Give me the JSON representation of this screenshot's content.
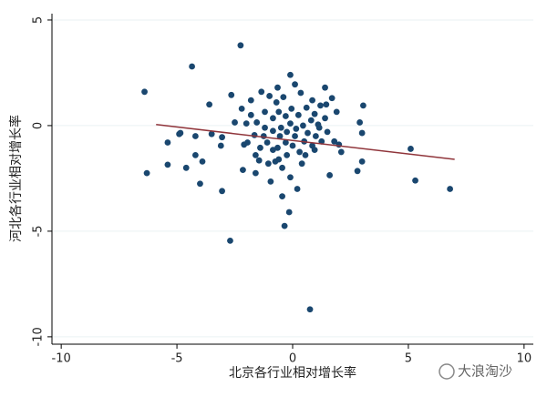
{
  "chart_data": {
    "type": "scatter",
    "x_label": "北京各行业相对增长率",
    "y_label": "河北各行业相对增长率",
    "watermark": "大浪淘沙",
    "xlim": [
      -10.4,
      10.4
    ],
    "ylim": [
      -10.35,
      5.3
    ],
    "xticks": [
      -10,
      -5,
      0,
      5,
      10
    ],
    "yticks": [
      -10,
      -5,
      0,
      5
    ],
    "grid": true,
    "color": "#1a476f",
    "x": [
      -6.4,
      -6.3,
      -5.4,
      -5.4,
      -4.85,
      -4.9,
      -4.6,
      -4.35,
      -4.2,
      -4.2,
      -4.0,
      -3.9,
      -3.6,
      -3.5,
      -3.1,
      -3.05,
      -3.05,
      -2.65,
      -2.7,
      -2.5,
      -2.25,
      -2.15,
      -2.2,
      -2.1,
      -1.95,
      -1.8,
      -1.8,
      -1.65,
      -1.6,
      -1.55,
      -1.45,
      -1.35,
      -1.25,
      -1.2,
      -1.1,
      -1.05,
      -1.0,
      -0.95,
      -0.85,
      -0.85,
      -0.75,
      -0.7,
      -0.65,
      -0.6,
      -0.55,
      -0.5,
      -0.45,
      -0.45,
      -0.4,
      -0.35,
      -0.3,
      -0.3,
      -0.25,
      -0.15,
      -0.1,
      -0.1,
      -0.05,
      0.0,
      0.1,
      0.1,
      0.15,
      0.2,
      0.25,
      0.3,
      0.35,
      0.4,
      0.45,
      0.5,
      0.6,
      0.65,
      0.75,
      0.8,
      0.85,
      0.85,
      0.95,
      1.0,
      1.1,
      1.2,
      1.25,
      1.4,
      1.4,
      1.5,
      1.6,
      1.7,
      1.8,
      1.9,
      2.0,
      2.1,
      2.8,
      2.9,
      3.0,
      3.05,
      3.0,
      5.1,
      5.3,
      6.8,
      -1.2,
      -0.85,
      -1.4,
      -0.25,
      0.55,
      0.95,
      -1.6,
      -0.6,
      -0.1,
      -2.0,
      1.15,
      1.45,
      -0.65
    ],
    "values": [
      1.6,
      -2.25,
      -0.8,
      -1.85,
      -0.35,
      -0.4,
      -2.0,
      2.8,
      -0.5,
      -1.4,
      -2.75,
      -1.7,
      1.0,
      -0.4,
      -0.95,
      -3.1,
      -0.55,
      1.45,
      -5.45,
      0.15,
      3.8,
      -2.1,
      0.8,
      -0.9,
      -0.8,
      1.2,
      0.5,
      -0.45,
      -1.4,
      0.15,
      -1.65,
      1.6,
      -0.5,
      0.65,
      -0.8,
      -1.8,
      1.4,
      -2.65,
      -0.25,
      0.35,
      -1.7,
      1.1,
      -1.05,
      0.65,
      -0.5,
      -0.1,
      -2.0,
      -3.35,
      1.35,
      -4.75,
      0.45,
      -0.8,
      -0.3,
      -4.1,
      0.1,
      2.4,
      0.8,
      -0.95,
      -0.5,
      1.95,
      -0.15,
      -3.0,
      0.5,
      -1.25,
      1.55,
      -1.8,
      0.0,
      -0.75,
      0.85,
      -0.35,
      -8.7,
      0.25,
      1.2,
      -0.95,
      0.55,
      -0.5,
      0.05,
      0.95,
      -0.75,
      1.8,
      0.35,
      -0.3,
      -2.35,
      1.3,
      -0.75,
      0.65,
      -0.9,
      -1.25,
      -2.15,
      0.15,
      -0.35,
      0.95,
      -1.7,
      -1.1,
      -2.6,
      -3.0,
      -0.1,
      -1.15,
      -1.05,
      -1.4,
      -1.4,
      -1.15,
      -2.25,
      -1.6,
      -2.45,
      0.1,
      -0.1,
      1.0,
      1.8
    ],
    "fit": {
      "color": "#90353b",
      "x": [
        -5.9,
        7.0
      ],
      "values": [
        0.05,
        -1.6
      ]
    }
  }
}
